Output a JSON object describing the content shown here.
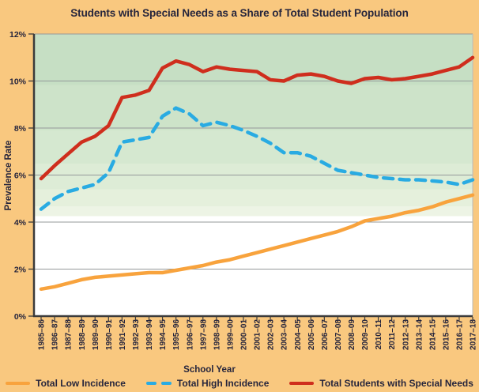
{
  "colors": {
    "page_bg": "#f9c87f",
    "text_dark": "#26253c",
    "grid": "#95999a",
    "axis": "#3b3b3b",
    "plot_right_border": "#b9bdbd"
  },
  "chart_data": {
    "type": "line",
    "title": "Students with Special Needs as a Share of Total Student Population",
    "xlabel": "School Year",
    "ylabel": "Prevalence Rate",
    "ylim": [
      0,
      12
    ],
    "grid": true,
    "legend_position": "bottom",
    "y_tick_labels": [
      "0%",
      "2%",
      "4%",
      "6%",
      "8%",
      "10%",
      "12%"
    ],
    "categories": [
      "1985–86",
      "1986–87",
      "1987–88",
      "1988–89",
      "1989–90",
      "1990–91",
      "1991–92",
      "1992–93",
      "1993–94",
      "1994–95",
      "1995–96",
      "1996–97",
      "1997–98",
      "1998–99",
      "1999–00",
      "2000–01",
      "2001–02",
      "2002–03",
      "2003–04",
      "2004–05",
      "2005–06",
      "2006–07",
      "2007–08",
      "2008–09",
      "2009–10",
      "2010–11",
      "2011–12",
      "2012–13",
      "2013–14",
      "2014–15",
      "2015–16",
      "2016–17",
      "2017–18"
    ],
    "series": [
      {
        "name": "Total Low Incidence",
        "color": "#f8a33d",
        "style": "solid",
        "values": [
          1.15,
          1.25,
          1.4,
          1.55,
          1.65,
          1.7,
          1.75,
          1.8,
          1.85,
          1.85,
          1.95,
          2.05,
          2.15,
          2.3,
          2.4,
          2.55,
          2.7,
          2.85,
          3.0,
          3.15,
          3.3,
          3.45,
          3.6,
          3.8,
          4.05,
          4.15,
          4.25,
          4.4,
          4.5,
          4.65,
          4.85,
          5.0,
          5.15
        ]
      },
      {
        "name": "Total High Incidence",
        "color": "#29abe2",
        "style": "dashed",
        "values": [
          4.55,
          5.0,
          5.3,
          5.45,
          5.6,
          6.1,
          7.4,
          7.5,
          7.6,
          8.5,
          8.85,
          8.6,
          8.1,
          8.25,
          8.1,
          7.9,
          7.65,
          7.35,
          6.95,
          6.95,
          6.8,
          6.5,
          6.2,
          6.1,
          6.0,
          5.9,
          5.85,
          5.8,
          5.8,
          5.75,
          5.7,
          5.6,
          5.8
        ]
      },
      {
        "name": "Total Students with Special Needs",
        "color": "#cf2e1d",
        "style": "solid",
        "values": [
          5.85,
          6.4,
          6.9,
          7.4,
          7.65,
          8.1,
          9.3,
          9.4,
          9.6,
          10.55,
          10.85,
          10.7,
          10.4,
          10.6,
          10.5,
          10.45,
          10.4,
          10.05,
          10.0,
          10.25,
          10.3,
          10.2,
          10.0,
          9.9,
          10.1,
          10.15,
          10.05,
          10.1,
          10.2,
          10.3,
          10.45,
          10.6,
          11.0
        ]
      }
    ],
    "background_bands": [
      {
        "until": 0.18,
        "color": "#c6dfc4"
      },
      {
        "until": 0.34,
        "color": "#cde3c9"
      },
      {
        "until": 0.46,
        "color": "#d5e8d0"
      },
      {
        "until": 0.55,
        "color": "#ddecd6"
      },
      {
        "until": 0.61,
        "color": "#e5f0dc"
      },
      {
        "until": 0.645,
        "color": "#edf4e5"
      },
      {
        "until": 1.0,
        "color": "#ffffff"
      }
    ]
  }
}
